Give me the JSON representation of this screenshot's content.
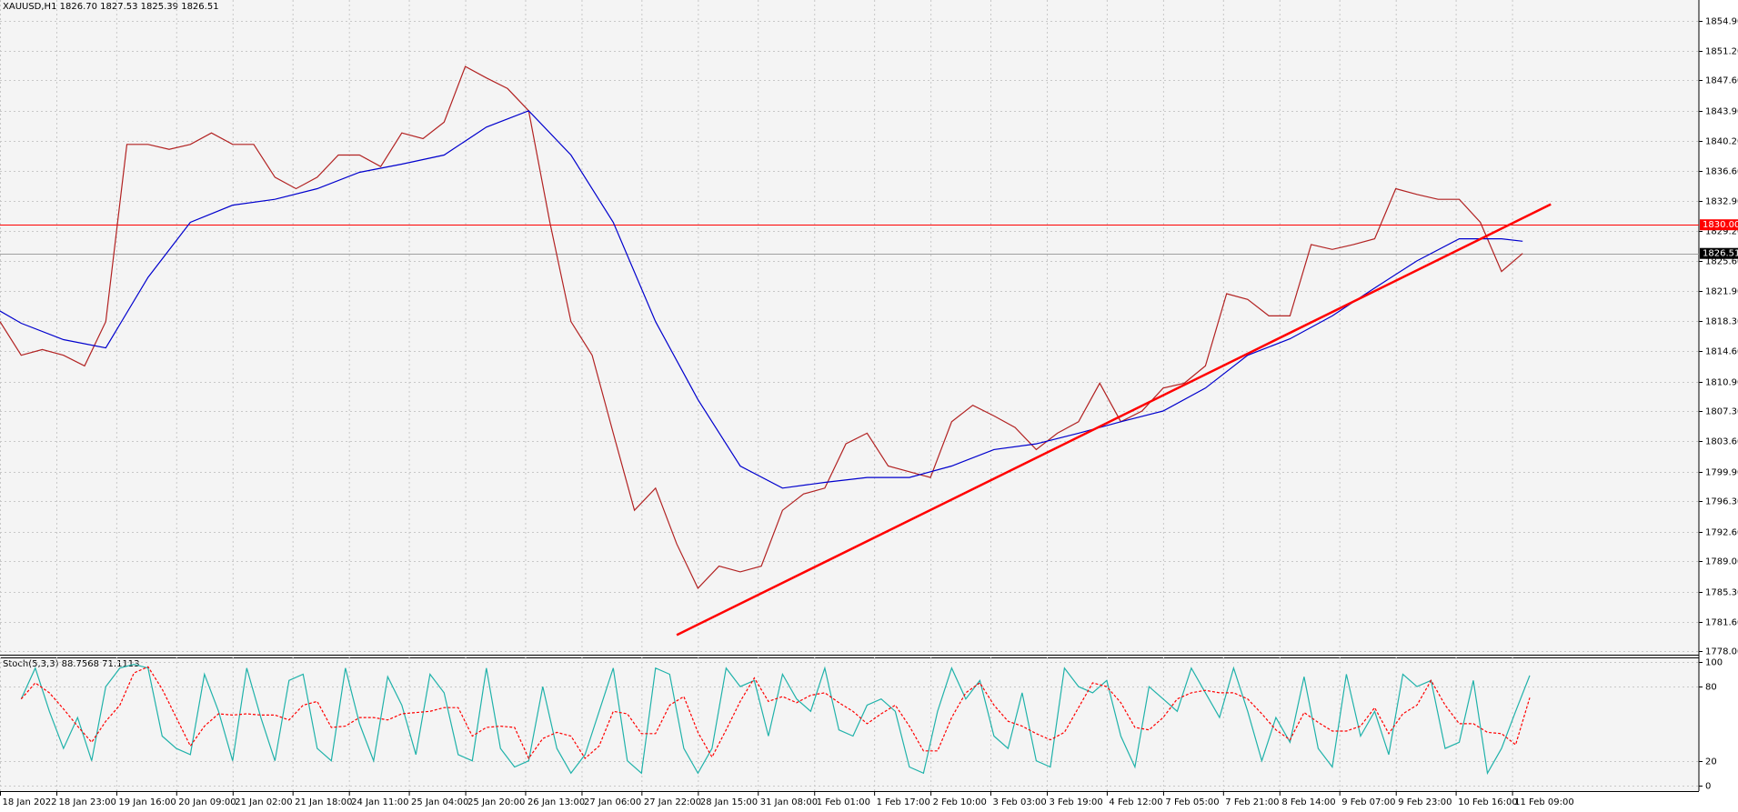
{
  "chart_data": [
    {
      "type": "line",
      "title": "XAUUSD,H1  1826.70 1827.53 1825.39 1826.51",
      "xlim": [
        0,
        482
      ],
      "ylim": [
        1777.6,
        1857.4
      ],
      "grid": true,
      "yticks": [
        {
          "value": 1778.0,
          "label": "1778.00"
        },
        {
          "value": 1781.6,
          "label": "1781.60"
        },
        {
          "value": 1785.3,
          "label": "1785.30"
        },
        {
          "value": 1789.0,
          "label": "1789.00"
        },
        {
          "value": 1792.6,
          "label": "1792.60"
        },
        {
          "value": 1796.3,
          "label": "1796.30"
        },
        {
          "value": 1799.9,
          "label": "1799.90"
        },
        {
          "value": 1803.6,
          "label": "1803.60"
        },
        {
          "value": 1807.3,
          "label": "1807.30"
        },
        {
          "value": 1810.9,
          "label": "1810.90"
        },
        {
          "value": 1814.6,
          "label": "1814.60"
        },
        {
          "value": 1818.3,
          "label": "1818.30"
        },
        {
          "value": 1821.9,
          "label": "1821.90"
        },
        {
          "value": 1825.6,
          "label": "1825.60"
        },
        {
          "value": 1829.2,
          "label": "1829.20"
        },
        {
          "value": 1832.9,
          "label": "1832.90"
        },
        {
          "value": 1836.6,
          "label": "1836.60"
        },
        {
          "value": 1840.2,
          "label": "1840.20"
        },
        {
          "value": 1843.9,
          "label": "1843.90"
        },
        {
          "value": 1847.6,
          "label": "1847.60"
        },
        {
          "value": 1851.2,
          "label": "1851.20"
        },
        {
          "value": 1854.9,
          "label": "1854.90"
        }
      ],
      "series": [
        {
          "color": "#b22222",
          "x": [
            0,
            6,
            12,
            18,
            24,
            30,
            36,
            42,
            48,
            54,
            60,
            66,
            72,
            78,
            84,
            90,
            96,
            102,
            108,
            114,
            120,
            126,
            132,
            138,
            144,
            150,
            156,
            162,
            168,
            174,
            180,
            186,
            192,
            198,
            204,
            210,
            216,
            222,
            228,
            234,
            240,
            246,
            252,
            258,
            264,
            270,
            276,
            282,
            288,
            294,
            300,
            306,
            312,
            318,
            324,
            330,
            336,
            342,
            348,
            354,
            360,
            366,
            372,
            378,
            384,
            390,
            396,
            402,
            408,
            414,
            420,
            426,
            432
          ],
          "values": [
            1818.2,
            1814.1,
            1814.8,
            1814.1,
            1812.8,
            1818.2,
            1839.8,
            1839.8,
            1839.2,
            1839.8,
            1841.2,
            1839.8,
            1839.8,
            1835.8,
            1834.4,
            1835.8,
            1838.5,
            1838.5,
            1837.1,
            1841.2,
            1840.5,
            1842.5,
            1849.3,
            1847.9,
            1846.6,
            1843.9,
            1830.3,
            1818.2,
            1814.1,
            1804.6,
            1795.2,
            1797.9,
            1791.1,
            1785.7,
            1788.4,
            1787.7,
            1788.4,
            1795.2,
            1797.2,
            1797.9,
            1803.3,
            1804.6,
            1800.6,
            1799.9,
            1799.2,
            1806.0,
            1808.0,
            1806.7,
            1805.3,
            1802.6,
            1804.6,
            1806.0,
            1810.7,
            1806.0,
            1807.3,
            1810.1,
            1810.7,
            1812.8,
            1821.6,
            1820.9,
            1818.9,
            1818.9,
            1827.6,
            1827.0,
            1827.6,
            1828.3,
            1834.4,
            1833.7,
            1833.1,
            1833.1,
            1830.3,
            1824.3,
            1826.51
          ]
        },
        {
          "color": "#0000cd",
          "x": [
            0,
            6,
            18,
            30,
            42,
            54,
            66,
            78,
            90,
            102,
            114,
            126,
            138,
            150,
            162,
            174,
            186,
            198,
            210,
            222,
            234,
            246,
            258,
            270,
            282,
            294,
            306,
            318,
            330,
            342,
            354,
            366,
            378,
            390,
            402,
            414,
            426,
            432
          ],
          "values": [
            1819.5,
            1818.0,
            1816.0,
            1815.0,
            1823.6,
            1830.3,
            1832.4,
            1833.1,
            1834.4,
            1836.4,
            1837.4,
            1838.5,
            1841.9,
            1843.9,
            1838.5,
            1830.3,
            1818.2,
            1808.7,
            1800.6,
            1797.9,
            1798.6,
            1799.2,
            1799.2,
            1800.6,
            1802.6,
            1803.3,
            1804.6,
            1806.0,
            1807.3,
            1810.1,
            1814.1,
            1816.1,
            1818.9,
            1822.3,
            1825.6,
            1828.3,
            1828.3,
            1828.0
          ]
        }
      ],
      "hlines": [
        {
          "value": 1830.0,
          "label": "1830.00",
          "color": "#ff0000"
        }
      ],
      "last_price": 1826.51,
      "trendline": {
        "color": "#ff0000",
        "x": [
          192,
          440
        ],
        "values": [
          1780.0,
          1832.5
        ]
      }
    },
    {
      "type": "line",
      "title": "Stoch(5,3,3) 88.7568 71.1113",
      "xlim": [
        0,
        482
      ],
      "ylim": [
        -4.5,
        103.6
      ],
      "grid": true,
      "yticks": [
        0,
        20,
        80,
        100
      ],
      "xticks": [
        {
          "value": 0,
          "label": "18 Jan 2022"
        },
        {
          "value": 16,
          "label": "18 Jan 23:00"
        },
        {
          "value": 33,
          "label": "19 Jan 16:00"
        },
        {
          "value": 50,
          "label": "20 Jan 09:00"
        },
        {
          "value": 66,
          "label": "21 Jan 02:00"
        },
        {
          "value": 83,
          "label": "21 Jan 18:00"
        },
        {
          "value": 99,
          "label": "24 Jan 11:00"
        },
        {
          "value": 116,
          "label": "25 Jan 04:00"
        },
        {
          "value": 132,
          "label": "25 Jan 20:00"
        },
        {
          "value": 149,
          "label": "26 Jan 13:00"
        },
        {
          "value": 165,
          "label": "27 Jan 06:00"
        },
        {
          "value": 182,
          "label": "27 Jan 22:00"
        },
        {
          "value": 198,
          "label": "28 Jan 15:00"
        },
        {
          "value": 215,
          "label": "31 Jan 08:00"
        },
        {
          "value": 231,
          "label": "1 Feb 01:00"
        },
        {
          "value": 248,
          "label": "1 Feb 17:00"
        },
        {
          "value": 264,
          "label": "2 Feb 10:00"
        },
        {
          "value": 281,
          "label": "3 Feb 03:00"
        },
        {
          "value": 297,
          "label": "3 Feb 19:00"
        },
        {
          "value": 314,
          "label": "4 Feb 12:00"
        },
        {
          "value": 330,
          "label": "7 Feb 05:00"
        },
        {
          "value": 347,
          "label": "7 Feb 21:00"
        },
        {
          "value": 363,
          "label": "8 Feb 14:00"
        },
        {
          "value": 380,
          "label": "9 Feb 07:00"
        },
        {
          "value": 396,
          "label": "9 Feb 23:00"
        },
        {
          "value": 413,
          "label": "10 Feb 16:00"
        },
        {
          "value": 429,
          "label": "11 Feb 09:00"
        }
      ],
      "series": [
        {
          "color": "#20b2aa",
          "x": [
            6,
            10,
            14,
            18,
            22,
            26,
            30,
            34,
            38,
            42,
            46,
            50,
            54,
            58,
            62,
            66,
            70,
            74,
            78,
            82,
            86,
            90,
            94,
            98,
            102,
            106,
            110,
            114,
            118,
            122,
            126,
            130,
            134,
            138,
            142,
            146,
            150,
            154,
            158,
            162,
            166,
            170,
            174,
            178,
            182,
            186,
            190,
            194,
            198,
            202,
            206,
            210,
            214,
            218,
            222,
            226,
            230,
            234,
            238,
            242,
            246,
            250,
            254,
            258,
            262,
            266,
            270,
            274,
            278,
            282,
            286,
            290,
            294,
            298,
            302,
            306,
            310,
            314,
            318,
            322,
            326,
            330,
            334,
            338,
            342,
            346,
            350,
            354,
            358,
            362,
            366,
            370,
            374,
            378,
            382,
            386,
            390,
            394,
            398,
            402,
            406,
            410,
            414,
            418,
            422,
            426,
            430,
            434
          ],
          "values": [
            70,
            95,
            60,
            30,
            55,
            20,
            80,
            95,
            98,
            95,
            40,
            30,
            25,
            90,
            60,
            20,
            95,
            55,
            20,
            85,
            90,
            30,
            20,
            95,
            50,
            20,
            88,
            65,
            25,
            90,
            75,
            25,
            20,
            95,
            30,
            15,
            20,
            80,
            30,
            10,
            25,
            60,
            95,
            20,
            10,
            95,
            90,
            30,
            10,
            30,
            95,
            80,
            85,
            40,
            90,
            70,
            60,
            95,
            45,
            40,
            65,
            70,
            60,
            15,
            10,
            60,
            95,
            70,
            85,
            40,
            30,
            75,
            20,
            15,
            95,
            80,
            75,
            85,
            40,
            15,
            80,
            70,
            60,
            95,
            75,
            55,
            95,
            60,
            20,
            55,
            35,
            88,
            30,
            15,
            90,
            40,
            60,
            25,
            90,
            80,
            85,
            30,
            35,
            85,
            10,
            30,
            60,
            89
          ]
        },
        {
          "color": "#ff0000",
          "style": "dashed",
          "x": [
            6,
            10,
            14,
            18,
            22,
            26,
            30,
            34,
            38,
            42,
            46,
            50,
            54,
            58,
            62,
            66,
            70,
            74,
            78,
            82,
            86,
            90,
            94,
            98,
            102,
            106,
            110,
            114,
            118,
            122,
            126,
            130,
            134,
            138,
            142,
            146,
            150,
            154,
            158,
            162,
            166,
            170,
            174,
            178,
            182,
            186,
            190,
            194,
            198,
            202,
            206,
            210,
            214,
            218,
            222,
            226,
            230,
            234,
            238,
            242,
            246,
            250,
            254,
            258,
            262,
            266,
            270,
            274,
            278,
            282,
            286,
            290,
            294,
            298,
            302,
            306,
            310,
            314,
            318,
            322,
            326,
            330,
            334,
            338,
            342,
            346,
            350,
            354,
            358,
            362,
            366,
            370,
            374,
            378,
            382,
            386,
            390,
            394,
            398,
            402,
            406,
            410,
            414,
            418,
            422,
            426,
            430,
            434
          ],
          "values": [
            70,
            83,
            75,
            62,
            48,
            35,
            52,
            65,
            91,
            96,
            78,
            55,
            32,
            48,
            58,
            57,
            58,
            57,
            57,
            53,
            65,
            68,
            47,
            48,
            55,
            55,
            53,
            58,
            59,
            60,
            63,
            63,
            40,
            47,
            48,
            47,
            22,
            38,
            43,
            40,
            22,
            32,
            60,
            58,
            42,
            42,
            65,
            72,
            43,
            23,
            45,
            68,
            87,
            68,
            72,
            67,
            73,
            75,
            67,
            60,
            50,
            58,
            65,
            48,
            28,
            28,
            55,
            75,
            83,
            65,
            52,
            48,
            42,
            37,
            43,
            63,
            83,
            80,
            67,
            47,
            45,
            55,
            70,
            75,
            77,
            75,
            75,
            70,
            58,
            45,
            37,
            59,
            51,
            44,
            44,
            48,
            63,
            42,
            58,
            65,
            85,
            65,
            50,
            50,
            43,
            42,
            33,
            71
          ]
        }
      ]
    }
  ]
}
